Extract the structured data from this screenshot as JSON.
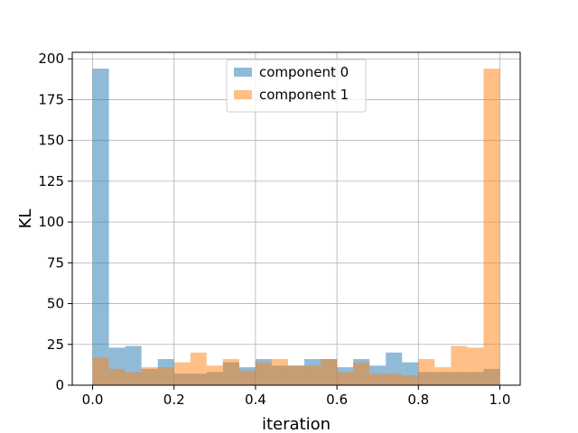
{
  "chart_data": {
    "type": "bar",
    "histogram": true,
    "xlabel": "iteration",
    "ylabel": "KL",
    "xlim": [
      -0.05,
      1.05
    ],
    "ylim": [
      0,
      204
    ],
    "xticks": [
      0.0,
      0.2,
      0.4,
      0.6,
      0.8,
      1.0
    ],
    "xtick_labels": [
      "0.0",
      "0.2",
      "0.4",
      "0.6",
      "0.8",
      "1.0"
    ],
    "yticks": [
      0,
      25,
      50,
      75,
      100,
      125,
      150,
      175,
      200
    ],
    "ytick_labels": [
      "0",
      "25",
      "50",
      "75",
      "100",
      "125",
      "150",
      "175",
      "200"
    ],
    "grid": true,
    "legend_position": "upper-center",
    "bin_edges": [
      0.0,
      0.04,
      0.08,
      0.12,
      0.16,
      0.2,
      0.24,
      0.28,
      0.32,
      0.36,
      0.4,
      0.44,
      0.48,
      0.52,
      0.56,
      0.6,
      0.64,
      0.68,
      0.72,
      0.76,
      0.8,
      0.84,
      0.88,
      0.92,
      0.96,
      1.0
    ],
    "series": [
      {
        "name": "component 0",
        "color": "#1f77b4",
        "values": [
          194,
          23,
          24,
          10,
          16,
          7,
          7,
          8,
          14,
          11,
          16,
          12,
          12,
          16,
          16,
          11,
          16,
          12,
          20,
          14,
          8,
          8,
          8,
          8,
          10
        ]
      },
      {
        "name": "component 1",
        "color": "#ff7f0e",
        "values": [
          17,
          10,
          8,
          11,
          11,
          14,
          20,
          12,
          16,
          9,
          14,
          16,
          12,
          12,
          16,
          8,
          14,
          7,
          7,
          6,
          16,
          11,
          24,
          23,
          194
        ]
      }
    ],
    "bar_alpha": 0.5
  }
}
